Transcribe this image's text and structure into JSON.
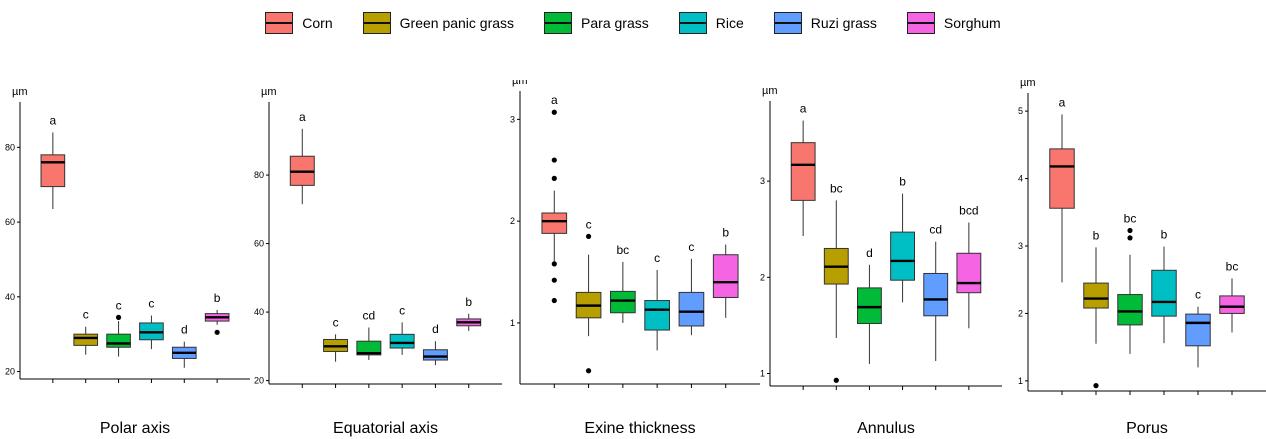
{
  "legend": {
    "items": [
      {
        "label": "Corn",
        "color": "#F8766D"
      },
      {
        "label": "Green panic grass",
        "color": "#B79F00"
      },
      {
        "label": "Para grass",
        "color": "#00BA38"
      },
      {
        "label": "Rice",
        "color": "#00BFC4"
      },
      {
        "label": "Ruzi grass",
        "color": "#619CFF"
      },
      {
        "label": "Sorghum",
        "color": "#F564E3"
      }
    ]
  },
  "chart_data": [
    {
      "type": "box",
      "title": "Polar axis",
      "ylabel": "µm",
      "ylim": [
        18,
        90
      ],
      "yticks": [
        20,
        40,
        60,
        80
      ],
      "categories": [
        "Corn",
        "Green panic grass",
        "Para grass",
        "Rice",
        "Ruzi grass",
        "Sorghum"
      ],
      "boxes": [
        {
          "min": 63.5,
          "q1": 69.5,
          "median": 76,
          "q3": 78,
          "max": 84,
          "outliers": [],
          "group": "a"
        },
        {
          "min": 24.5,
          "q1": 27,
          "median": 29,
          "q3": 30,
          "max": 32,
          "outliers": [],
          "group": "c"
        },
        {
          "min": 24,
          "q1": 26.5,
          "median": 27.5,
          "q3": 30,
          "max": 33.5,
          "outliers": [
            34.5
          ],
          "group": "c"
        },
        {
          "min": 26,
          "q1": 28.5,
          "median": 30.5,
          "q3": 33,
          "max": 35,
          "outliers": [],
          "group": "c"
        },
        {
          "min": 21,
          "q1": 23.5,
          "median": 25,
          "q3": 26.5,
          "max": 28,
          "outliers": [],
          "group": "d"
        },
        {
          "min": 32.5,
          "q1": 33.5,
          "median": 34.5,
          "q3": 35.5,
          "max": 36.5,
          "outliers": [
            30.5
          ],
          "group": "b"
        }
      ]
    },
    {
      "type": "box",
      "title": "Equatorial axis",
      "ylabel": "µm",
      "ylim": [
        19,
        99
      ],
      "yticks": [
        20,
        40,
        60,
        80
      ],
      "categories": [
        "Corn",
        "Green panic grass",
        "Para grass",
        "Rice",
        "Ruzi grass",
        "Sorghum"
      ],
      "boxes": [
        {
          "min": 71.5,
          "q1": 77,
          "median": 81,
          "q3": 85.5,
          "max": 93.5,
          "outliers": [],
          "group": "a"
        },
        {
          "min": 25.5,
          "q1": 28.5,
          "median": 30,
          "q3": 32,
          "max": 33.5,
          "outliers": [],
          "group": "c"
        },
        {
          "min": 26,
          "q1": 27.5,
          "median": 28,
          "q3": 31.5,
          "max": 35.5,
          "outliers": [],
          "group": "cd"
        },
        {
          "min": 27.5,
          "q1": 29.5,
          "median": 31,
          "q3": 33.5,
          "max": 37,
          "outliers": [],
          "group": "c"
        },
        {
          "min": 24.5,
          "q1": 26,
          "median": 27,
          "q3": 29,
          "max": 31.5,
          "outliers": [],
          "group": "d"
        },
        {
          "min": 34.5,
          "q1": 36,
          "median": 37,
          "q3": 38,
          "max": 39.5,
          "outliers": [],
          "group": "b"
        }
      ]
    },
    {
      "type": "box",
      "title": "Exine thickness",
      "ylabel": "µm",
      "ylim": [
        0.4,
        3.2
      ],
      "yticks": [
        1,
        2,
        3
      ],
      "categories": [
        "Corn",
        "Green panic grass",
        "Para grass",
        "Rice",
        "Ruzi grass",
        "Sorghum"
      ],
      "boxes": [
        {
          "min": 1.6,
          "q1": 1.88,
          "median": 2.0,
          "q3": 2.08,
          "max": 2.3,
          "outliers": [
            3.07,
            2.6,
            2.42,
            1.58,
            1.42,
            1.22
          ],
          "group": "a"
        },
        {
          "min": 0.87,
          "q1": 1.05,
          "median": 1.17,
          "q3": 1.3,
          "max": 1.67,
          "outliers": [
            1.85,
            0.53
          ],
          "group": "c"
        },
        {
          "min": 1.0,
          "q1": 1.1,
          "median": 1.22,
          "q3": 1.31,
          "max": 1.6,
          "outliers": [],
          "group": "bc"
        },
        {
          "min": 0.73,
          "q1": 0.93,
          "median": 1.13,
          "q3": 1.22,
          "max": 1.52,
          "outliers": [],
          "group": "c"
        },
        {
          "min": 0.88,
          "q1": 0.97,
          "median": 1.11,
          "q3": 1.3,
          "max": 1.63,
          "outliers": [],
          "group": "c"
        },
        {
          "min": 1.05,
          "q1": 1.25,
          "median": 1.4,
          "q3": 1.67,
          "max": 1.77,
          "outliers": [],
          "group": "b"
        }
      ]
    },
    {
      "type": "box",
      "title": "Annulus",
      "ylabel": "µm",
      "ylim": [
        0.87,
        3.75
      ],
      "yticks": [
        1,
        2,
        3
      ],
      "categories": [
        "Corn",
        "Green panic grass",
        "Para grass",
        "Rice",
        "Ruzi grass",
        "Sorghum"
      ],
      "boxes": [
        {
          "min": 2.43,
          "q1": 2.8,
          "median": 3.17,
          "q3": 3.4,
          "max": 3.63,
          "outliers": [],
          "group": "a"
        },
        {
          "min": 1.37,
          "q1": 1.93,
          "median": 2.11,
          "q3": 2.3,
          "max": 2.8,
          "outliers": [
            0.93
          ],
          "group": "bc"
        },
        {
          "min": 1.1,
          "q1": 1.52,
          "median": 1.69,
          "q3": 1.89,
          "max": 2.13,
          "outliers": [],
          "group": "d"
        },
        {
          "min": 1.74,
          "q1": 1.97,
          "median": 2.17,
          "q3": 2.47,
          "max": 2.87,
          "outliers": [],
          "group": "b"
        },
        {
          "min": 1.13,
          "q1": 1.6,
          "median": 1.77,
          "q3": 2.04,
          "max": 2.37,
          "outliers": [],
          "group": "cd"
        },
        {
          "min": 1.47,
          "q1": 1.84,
          "median": 1.94,
          "q3": 2.25,
          "max": 2.57,
          "outliers": [],
          "group": "bcd"
        }
      ]
    },
    {
      "type": "box",
      "title": "Porus",
      "ylabel": "µm",
      "ylim": [
        0.85,
        5.15
      ],
      "yticks": [
        1,
        2,
        3,
        4,
        5
      ],
      "categories": [
        "Corn",
        "Green panic grass",
        "Para grass",
        "Rice",
        "Ruzi grass",
        "Sorghum"
      ],
      "boxes": [
        {
          "min": 2.46,
          "q1": 3.56,
          "median": 4.18,
          "q3": 4.44,
          "max": 4.95,
          "outliers": [],
          "group": "a"
        },
        {
          "min": 1.55,
          "q1": 2.08,
          "median": 2.22,
          "q3": 2.45,
          "max": 2.98,
          "outliers": [
            0.93
          ],
          "group": "b"
        },
        {
          "min": 1.4,
          "q1": 1.83,
          "median": 2.03,
          "q3": 2.28,
          "max": 2.87,
          "outliers": [
            3.23,
            3.12
          ],
          "group": "bc"
        },
        {
          "min": 1.56,
          "q1": 1.96,
          "median": 2.17,
          "q3": 2.64,
          "max": 2.99,
          "outliers": [],
          "group": "b"
        },
        {
          "min": 1.2,
          "q1": 1.52,
          "median": 1.86,
          "q3": 1.99,
          "max": 2.1,
          "outliers": [],
          "group": "c"
        },
        {
          "min": 1.72,
          "q1": 2.0,
          "median": 2.1,
          "q3": 2.26,
          "max": 2.52,
          "outliers": [],
          "group": "bc"
        }
      ]
    }
  ]
}
